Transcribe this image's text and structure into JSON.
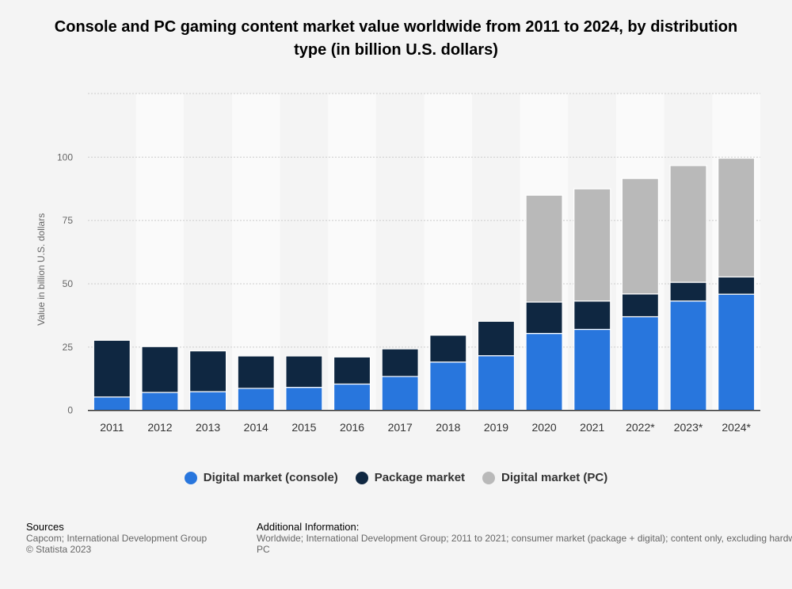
{
  "chart_data": {
    "type": "bar",
    "stacked": true,
    "title": "Console and PC gaming content market value worldwide from 2011 to 2024, by distribution type (in billion U.S. dollars)",
    "xlabel": "",
    "ylabel": "Value in billion U.S. dollars",
    "ylim": [
      0,
      125
    ],
    "yticks": [
      0,
      25,
      50,
      75,
      100
    ],
    "grid": true,
    "legend_position": "bottom",
    "categories": [
      "2011",
      "2012",
      "2013",
      "2014",
      "2015",
      "2016",
      "2017",
      "2018",
      "2019",
      "2020",
      "2021",
      "2022*",
      "2023*",
      "2024*"
    ],
    "series": [
      {
        "name": "Digital market (console)",
        "color": "#2876dd",
        "values": [
          5.3,
          7.1,
          7.4,
          8.7,
          9.1,
          10.4,
          13.4,
          19.1,
          21.6,
          30.4,
          32.0,
          37.0,
          43.2,
          45.9
        ]
      },
      {
        "name": "Package market",
        "color": "#0f2741",
        "values": [
          22.4,
          18.1,
          16.1,
          12.8,
          12.4,
          10.7,
          10.9,
          10.6,
          13.6,
          12.4,
          11.2,
          9.0,
          7.4,
          6.8
        ]
      },
      {
        "name": "Digital market (PC)",
        "color": "#b9b9b9",
        "values": [
          0,
          0,
          0,
          0,
          0,
          0,
          0,
          0,
          0,
          42.2,
          44.3,
          45.6,
          46.1,
          46.9
        ]
      }
    ]
  },
  "footer": {
    "sources_heading": "Sources",
    "sources_line1": "Capcom; International Development Group",
    "sources_line2": "© Statista 2023",
    "info_heading": "Additional Information:",
    "info_line1": "Worldwide; International Development Group; 2011 to 2021; consumer market (package + digital); content only, excluding hardware",
    "info_line2": "PC"
  }
}
